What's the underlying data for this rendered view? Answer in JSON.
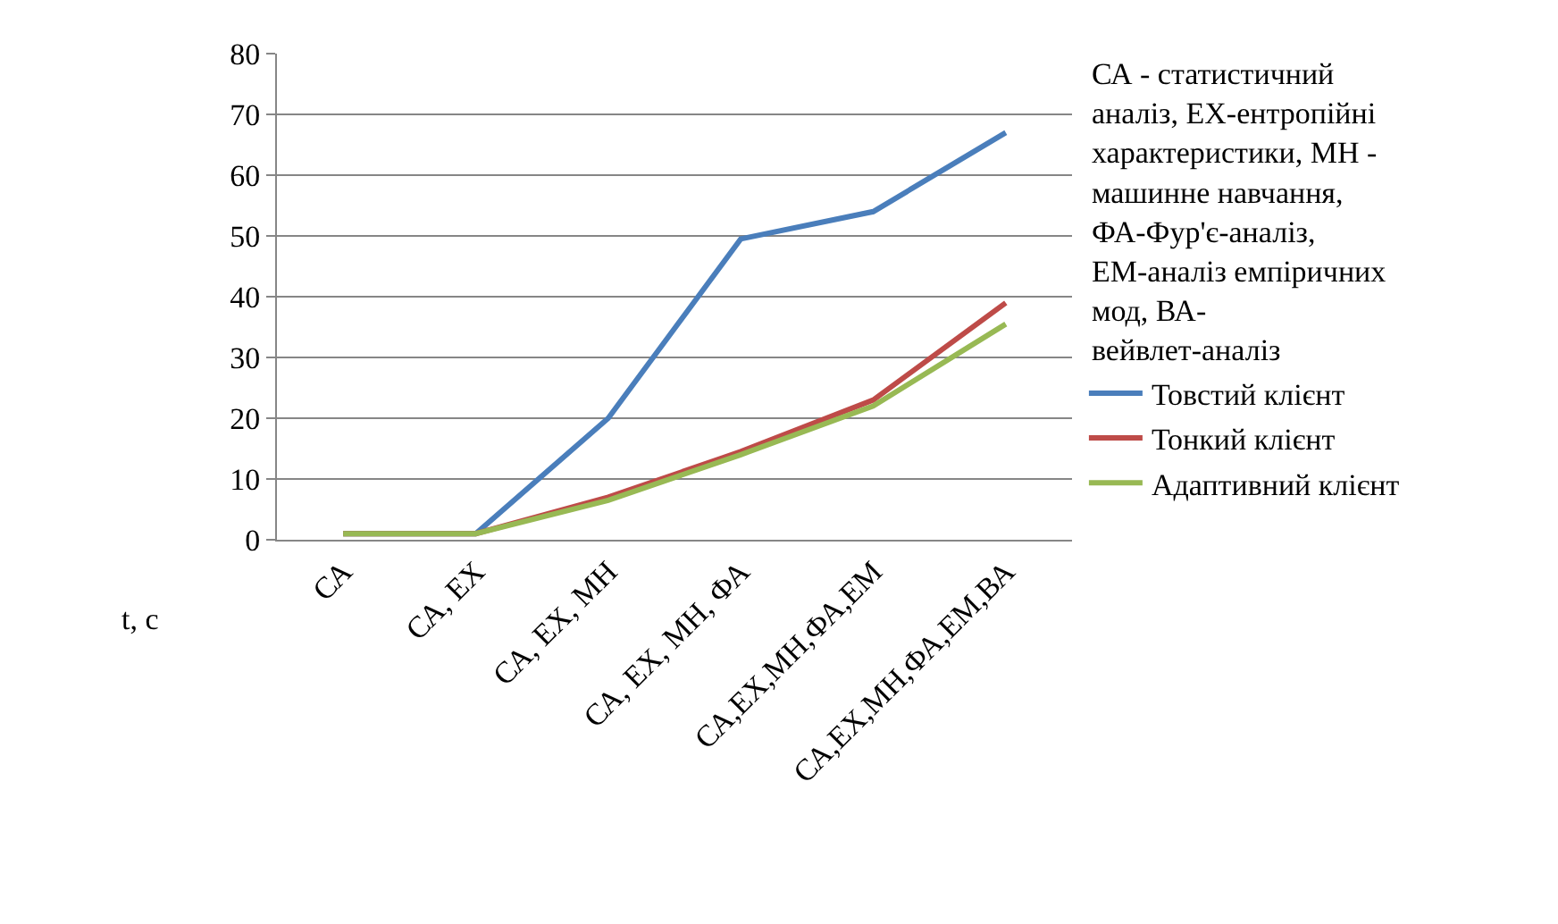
{
  "chart_data": {
    "type": "line",
    "ylabel": "t, c",
    "categories": [
      "СА",
      "СА, ЕХ",
      "СА, ЕХ, МН",
      "СА, ЕХ, МН, ФА",
      "СА,ЕХ,МН,ФА,ЕМ",
      "СА,ЕХ,МН,ФА,ЕМ,ВА"
    ],
    "series": [
      {
        "name": "Товстий клієнт",
        "color": "#4a7ebb",
        "values": [
          1,
          1,
          20,
          49.5,
          54,
          67
        ]
      },
      {
        "name": "Тонкий клієнт",
        "color": "#be4b48",
        "values": [
          1,
          1,
          7,
          14.5,
          23,
          39
        ]
      },
      {
        "name": "Адаптивний клієнт",
        "color": "#98b954",
        "values": [
          1,
          1,
          6.5,
          14,
          22,
          35.5
        ]
      }
    ],
    "ylim": [
      0,
      80
    ],
    "yticks": [
      0,
      10,
      20,
      30,
      40,
      50,
      60,
      70,
      80
    ],
    "grid": "y",
    "legend": "right",
    "marker": "none",
    "line_style": "solid",
    "annotations": [
      "СА - статистичний аналіз, ЕХ-ентропійні характеристики, МН - машинне навчання, ФА-Фур'є-аналіз, ЕМ-аналіз емпіричних мод, ВА- вейвлет-аналіз"
    ]
  }
}
